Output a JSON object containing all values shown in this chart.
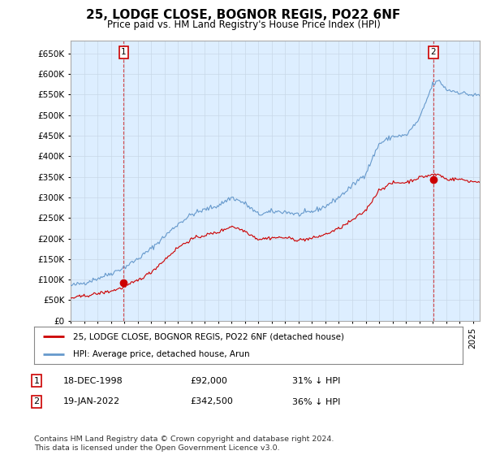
{
  "title": "25, LODGE CLOSE, BOGNOR REGIS, PO22 6NF",
  "subtitle": "Price paid vs. HM Land Registry's House Price Index (HPI)",
  "xlim_start": 1995.0,
  "xlim_end": 2025.5,
  "ylim": [
    0,
    680000
  ],
  "yticks": [
    0,
    50000,
    100000,
    150000,
    200000,
    250000,
    300000,
    350000,
    400000,
    450000,
    500000,
    550000,
    600000,
    650000
  ],
  "sale1_x": 1998.96,
  "sale1_y": 92000,
  "sale1_label": "1",
  "sale2_x": 2022.05,
  "sale2_y": 342500,
  "sale2_label": "2",
  "red_line_color": "#cc0000",
  "blue_line_color": "#6699cc",
  "sale_marker_color": "#cc0000",
  "grid_color": "#c8d8e8",
  "chart_bg_color": "#ddeeff",
  "background_color": "#ffffff",
  "legend_label1": "25, LODGE CLOSE, BOGNOR REGIS, PO22 6NF (detached house)",
  "legend_label2": "HPI: Average price, detached house, Arun",
  "table_row1": [
    "1",
    "18-DEC-1998",
    "£92,000",
    "31% ↓ HPI"
  ],
  "table_row2": [
    "2",
    "19-JAN-2022",
    "£342,500",
    "36% ↓ HPI"
  ],
  "footnote": "Contains HM Land Registry data © Crown copyright and database right 2024.\nThis data is licensed under the Open Government Licence v3.0.",
  "hpi_keypoints_x": [
    1995,
    1996,
    1997,
    1998,
    1999,
    2000,
    2001,
    2002,
    2003,
    2004,
    2005,
    2006,
    2007,
    2008,
    2009,
    2010,
    2011,
    2012,
    2013,
    2014,
    2015,
    2016,
    2017,
    2018,
    2019,
    2020,
    2021,
    2022,
    2022.5,
    2023,
    2024,
    2025
  ],
  "hpi_keypoints_y": [
    85000,
    92000,
    103000,
    115000,
    130000,
    150000,
    175000,
    205000,
    235000,
    258000,
    270000,
    280000,
    300000,
    285000,
    258000,
    265000,
    265000,
    258000,
    265000,
    278000,
    300000,
    328000,
    358000,
    430000,
    448000,
    450000,
    490000,
    575000,
    583000,
    562000,
    555000,
    548000
  ],
  "prop_keypoints_x": [
    1995,
    1996,
    1997,
    1998,
    1999,
    2000,
    2001,
    2002,
    2003,
    2004,
    2005,
    2006,
    2007,
    2008,
    2009,
    2010,
    2011,
    2012,
    2013,
    2014,
    2015,
    2016,
    2017,
    2018,
    2019,
    2020,
    2021,
    2022,
    2022.5,
    2023,
    2024,
    2025
  ],
  "prop_keypoints_y": [
    55000,
    60000,
    66000,
    72000,
    82000,
    98000,
    118000,
    148000,
    178000,
    198000,
    208000,
    215000,
    230000,
    218000,
    198000,
    202000,
    202000,
    196000,
    200000,
    210000,
    224000,
    244000,
    268000,
    318000,
    335000,
    336000,
    348000,
    355000,
    355000,
    344000,
    344000,
    338000
  ],
  "noise_scale_hpi": 3000,
  "noise_scale_prop": 2000,
  "random_seed": 42
}
